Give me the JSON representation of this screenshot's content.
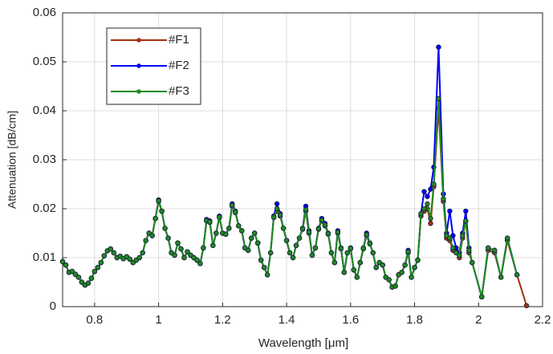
{
  "chart_data": {
    "type": "line",
    "x_label": "Wavelength [μm]",
    "y_label": "Attenuation [dB/cm]",
    "x": [
      0.7,
      0.71,
      0.72,
      0.73,
      0.74,
      0.75,
      0.76,
      0.77,
      0.78,
      0.79,
      0.8,
      0.81,
      0.82,
      0.83,
      0.84,
      0.85,
      0.86,
      0.87,
      0.88,
      0.89,
      0.9,
      0.91,
      0.92,
      0.93,
      0.94,
      0.95,
      0.96,
      0.97,
      0.98,
      0.99,
      1.0,
      1.01,
      1.02,
      1.03,
      1.04,
      1.05,
      1.06,
      1.07,
      1.08,
      1.09,
      1.1,
      1.11,
      1.12,
      1.13,
      1.14,
      1.15,
      1.16,
      1.17,
      1.18,
      1.19,
      1.2,
      1.21,
      1.22,
      1.23,
      1.24,
      1.25,
      1.26,
      1.27,
      1.28,
      1.29,
      1.3,
      1.31,
      1.32,
      1.33,
      1.34,
      1.35,
      1.36,
      1.37,
      1.38,
      1.39,
      1.4,
      1.41,
      1.42,
      1.43,
      1.44,
      1.45,
      1.46,
      1.47,
      1.48,
      1.49,
      1.5,
      1.51,
      1.52,
      1.53,
      1.54,
      1.55,
      1.56,
      1.57,
      1.58,
      1.59,
      1.6,
      1.61,
      1.62,
      1.63,
      1.64,
      1.65,
      1.66,
      1.67,
      1.68,
      1.69,
      1.7,
      1.71,
      1.72,
      1.73,
      1.74,
      1.75,
      1.76,
      1.77,
      1.78,
      1.79,
      1.8,
      1.81,
      1.82,
      1.83,
      1.84,
      1.85,
      1.86,
      1.875,
      1.89,
      1.9,
      1.91,
      1.92,
      1.93,
      1.94,
      1.95,
      1.96,
      1.97,
      1.98,
      2.01,
      2.03,
      2.05,
      2.07,
      2.09,
      2.12,
      2.15
    ],
    "series": [
      {
        "name": "#F1",
        "color": "#a5300f",
        "values": [
          0.0092,
          0.0085,
          0.007,
          0.0072,
          0.0066,
          0.006,
          0.005,
          0.0044,
          0.0048,
          0.0058,
          0.0072,
          0.008,
          0.009,
          0.0104,
          0.0114,
          0.0118,
          0.011,
          0.01,
          0.0103,
          0.0098,
          0.0102,
          0.0097,
          0.009,
          0.0095,
          0.01,
          0.011,
          0.0135,
          0.015,
          0.0145,
          0.018,
          0.0215,
          0.0195,
          0.016,
          0.014,
          0.011,
          0.0105,
          0.013,
          0.0118,
          0.01,
          0.0112,
          0.0105,
          0.01,
          0.0095,
          0.0088,
          0.012,
          0.0175,
          0.0172,
          0.0125,
          0.015,
          0.0182,
          0.015,
          0.0148,
          0.016,
          0.0205,
          0.0192,
          0.0165,
          0.0155,
          0.012,
          0.0115,
          0.014,
          0.015,
          0.013,
          0.0095,
          0.008,
          0.0065,
          0.011,
          0.0182,
          0.0195,
          0.0185,
          0.016,
          0.0135,
          0.011,
          0.01,
          0.0125,
          0.014,
          0.0158,
          0.0195,
          0.015,
          0.0105,
          0.012,
          0.0158,
          0.0175,
          0.0165,
          0.0148,
          0.011,
          0.009,
          0.015,
          0.0118,
          0.007,
          0.011,
          0.0118,
          0.0075,
          0.006,
          0.009,
          0.0118,
          0.0145,
          0.0128,
          0.011,
          0.008,
          0.009,
          0.0085,
          0.006,
          0.0055,
          0.004,
          0.0042,
          0.0065,
          0.007,
          0.0085,
          0.011,
          0.006,
          0.008,
          0.0095,
          0.0185,
          0.0195,
          0.02,
          0.017,
          0.0245,
          0.0405,
          0.0215,
          0.014,
          0.0135,
          0.0115,
          0.011,
          0.01,
          0.014,
          0.0175,
          0.011,
          0.009,
          0.002,
          0.0115,
          0.011,
          0.006,
          0.0135,
          0.0065,
          0.0002
        ]
      },
      {
        "name": "#F2",
        "color": "#0000ff",
        "values": [
          0.0092,
          0.0085,
          0.007,
          0.0072,
          0.0066,
          0.006,
          0.005,
          0.0044,
          0.0048,
          0.0058,
          0.0072,
          0.008,
          0.009,
          0.0104,
          0.0114,
          0.0118,
          0.011,
          0.01,
          0.0103,
          0.0098,
          0.0102,
          0.0097,
          0.009,
          0.0095,
          0.01,
          0.011,
          0.0135,
          0.015,
          0.0145,
          0.018,
          0.0218,
          0.0195,
          0.016,
          0.014,
          0.011,
          0.0105,
          0.013,
          0.0118,
          0.01,
          0.0112,
          0.0105,
          0.01,
          0.0095,
          0.0088,
          0.012,
          0.0178,
          0.0175,
          0.0125,
          0.015,
          0.0185,
          0.015,
          0.0148,
          0.016,
          0.021,
          0.0195,
          0.0165,
          0.0155,
          0.012,
          0.0115,
          0.014,
          0.015,
          0.013,
          0.0095,
          0.008,
          0.0065,
          0.011,
          0.0185,
          0.021,
          0.019,
          0.016,
          0.0135,
          0.011,
          0.01,
          0.0125,
          0.014,
          0.016,
          0.0205,
          0.0155,
          0.0105,
          0.012,
          0.016,
          0.018,
          0.017,
          0.015,
          0.011,
          0.009,
          0.0155,
          0.012,
          0.007,
          0.011,
          0.012,
          0.0075,
          0.006,
          0.009,
          0.012,
          0.015,
          0.013,
          0.011,
          0.008,
          0.009,
          0.0085,
          0.006,
          0.0055,
          0.004,
          0.0042,
          0.0065,
          0.007,
          0.0085,
          0.0115,
          0.006,
          0.008,
          0.0095,
          0.019,
          0.0235,
          0.0225,
          0.024,
          0.0285,
          0.053,
          0.023,
          0.015,
          0.0195,
          0.0145,
          0.012,
          0.011,
          0.015,
          0.0195,
          0.012,
          0.009,
          0.002,
          0.012,
          0.0115,
          0.006,
          0.014,
          0.0065,
          null
        ]
      },
      {
        "name": "#F3",
        "color": "#1e8c1e",
        "values": [
          0.0092,
          0.0085,
          0.007,
          0.0072,
          0.0066,
          0.006,
          0.005,
          0.0044,
          0.0048,
          0.0058,
          0.0072,
          0.008,
          0.009,
          0.0104,
          0.0114,
          0.0118,
          0.011,
          0.01,
          0.0103,
          0.0098,
          0.0102,
          0.0097,
          0.009,
          0.0095,
          0.01,
          0.011,
          0.0135,
          0.015,
          0.0145,
          0.018,
          0.0216,
          0.0195,
          0.016,
          0.014,
          0.011,
          0.0105,
          0.013,
          0.0118,
          0.01,
          0.0112,
          0.0105,
          0.01,
          0.0095,
          0.0088,
          0.012,
          0.0176,
          0.0173,
          0.0125,
          0.015,
          0.0183,
          0.015,
          0.0148,
          0.016,
          0.0207,
          0.0193,
          0.0165,
          0.0155,
          0.012,
          0.0115,
          0.014,
          0.015,
          0.013,
          0.0095,
          0.008,
          0.0065,
          0.011,
          0.0183,
          0.02,
          0.0187,
          0.016,
          0.0135,
          0.011,
          0.01,
          0.0125,
          0.014,
          0.0159,
          0.0198,
          0.0152,
          0.0105,
          0.012,
          0.0159,
          0.0177,
          0.0167,
          0.0149,
          0.011,
          0.009,
          0.0152,
          0.0119,
          0.007,
          0.011,
          0.0119,
          0.0075,
          0.006,
          0.009,
          0.0119,
          0.0147,
          0.0129,
          0.011,
          0.008,
          0.009,
          0.0085,
          0.006,
          0.0055,
          0.004,
          0.0042,
          0.0065,
          0.007,
          0.0085,
          0.0112,
          0.006,
          0.008,
          0.0095,
          0.019,
          0.02,
          0.021,
          0.018,
          0.025,
          0.0425,
          0.022,
          0.0145,
          0.014,
          0.012,
          0.011,
          0.0105,
          0.0145,
          0.0175,
          0.0115,
          0.009,
          0.002,
          0.012,
          0.0115,
          0.006,
          0.014,
          0.0065,
          null
        ]
      }
    ],
    "xlim": [
      0.7,
      2.2
    ],
    "xticks": [
      0.8,
      1,
      1.2,
      1.4,
      1.6,
      1.8,
      2,
      2.2
    ],
    "ylim": [
      0,
      0.06
    ],
    "yticks": [
      0,
      0.01,
      0.02,
      0.03,
      0.04,
      0.05,
      0.06
    ],
    "grid": true,
    "legend": "upper left"
  }
}
